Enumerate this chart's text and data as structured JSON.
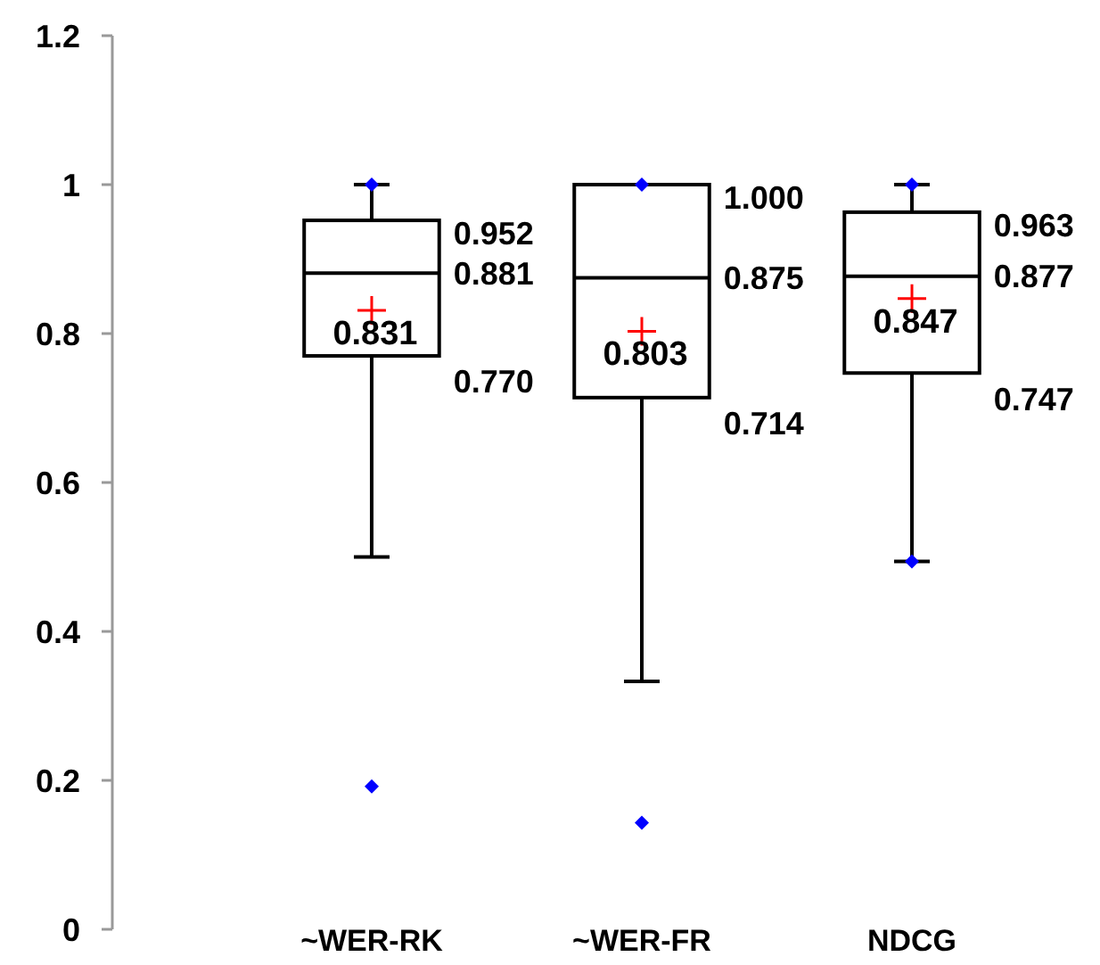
{
  "chart_data": {
    "type": "box",
    "categories": [
      "~WER-RK",
      "~WER-FR",
      "NDCG"
    ],
    "boxes": [
      {
        "low": 0.5,
        "q1": 0.77,
        "median": 0.881,
        "q3": 0.952,
        "high": 1.0,
        "mean": 0.831,
        "outliers": [
          0.192,
          1.0
        ]
      },
      {
        "low": 0.333,
        "q1": 0.714,
        "median": 0.875,
        "q3": 1.0,
        "high": 1.0,
        "mean": 0.803,
        "outliers": [
          0.143,
          1.0
        ]
      },
      {
        "low": 0.494,
        "q1": 0.747,
        "median": 0.877,
        "q3": 0.963,
        "high": 1.0,
        "mean": 0.847,
        "outliers": [
          0.494,
          1.0
        ]
      }
    ],
    "annotations": [
      {
        "text": "0.952",
        "x": "~WER-RK",
        "y": 0.952
      },
      {
        "text": "0.881",
        "x": "~WER-RK",
        "y": 0.881
      },
      {
        "text": "0.770",
        "x": "~WER-RK",
        "y": 0.77
      },
      "0.831",
      {
        "text": "1.000",
        "x": "~WER-FR",
        "y": 1.0
      },
      {
        "text": "0.875",
        "x": "~WER-FR",
        "y": 0.875
      },
      {
        "text": "0.714",
        "x": "~WER-FR",
        "y": 0.714
      },
      "0.803",
      {
        "text": "0.963",
        "x": "NDCG",
        "y": 0.963
      },
      {
        "text": "0.877",
        "x": "NDCG",
        "y": 0.877
      },
      {
        "text": "0.747",
        "x": "NDCG",
        "y": 0.747
      },
      "0.847"
    ],
    "ylim": [
      0,
      1.2
    ],
    "yticks": [
      0,
      0.2,
      0.4,
      0.6,
      0.8,
      1,
      1.2
    ],
    "grid": false
  }
}
